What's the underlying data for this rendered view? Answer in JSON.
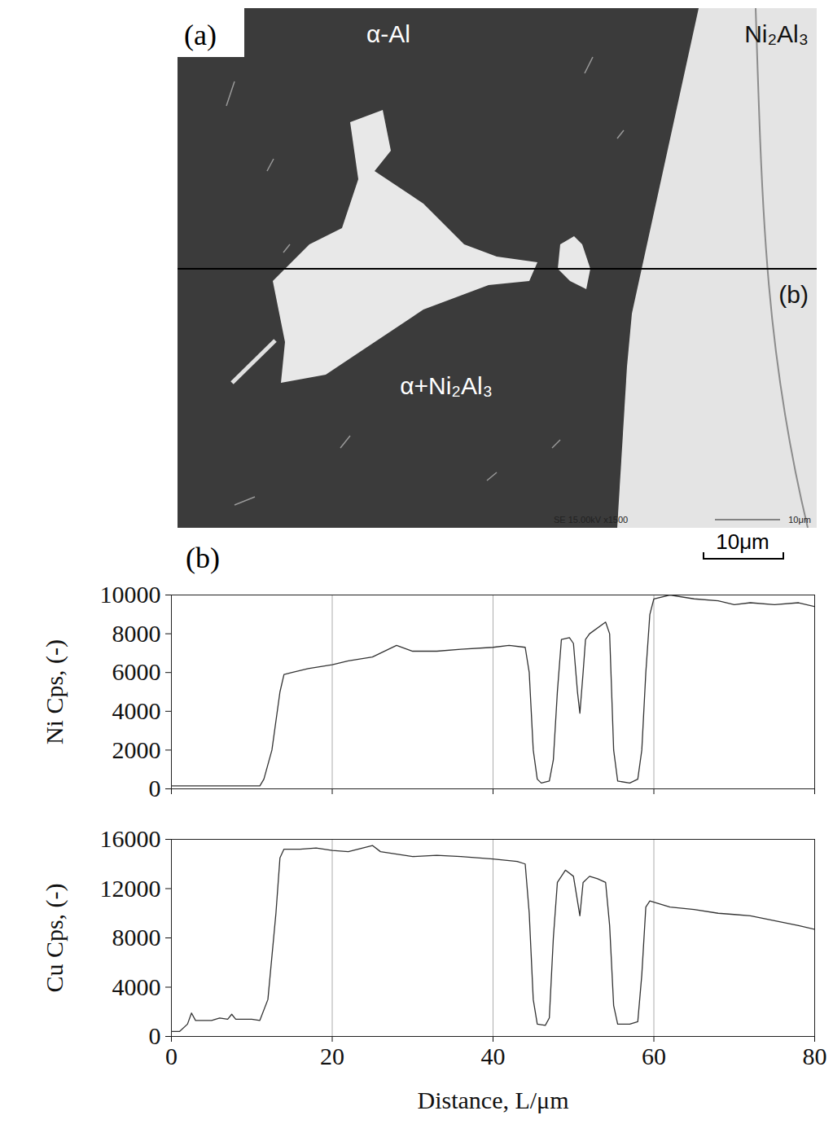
{
  "micrograph": {
    "panel_label": "(a)",
    "phase_labels": [
      "α-Al",
      "Ni₂Al₃",
      "α+Ni₂Al₃"
    ],
    "line_label": "(b)",
    "instrument_text": "SE 15.00kV x1500",
    "instrument_scale": "10μm",
    "scale_bar": "10μm"
  },
  "profile_panel_label": "(b)",
  "chart_data": [
    {
      "type": "line",
      "y_label": "Ni Cps, (-)",
      "color": "#333333",
      "grid": true,
      "tick_labels": "y",
      "xlim": [
        0,
        80
      ],
      "xticks": [
        0,
        20,
        40,
        60,
        80
      ],
      "ylim": [
        0,
        10000
      ],
      "yticks": [
        0,
        2000,
        4000,
        6000,
        8000,
        10000
      ],
      "x": [
        0,
        5,
        11,
        11.5,
        12.5,
        13.5,
        14,
        15,
        17,
        20,
        22,
        25,
        28,
        30,
        33,
        36,
        40,
        42,
        44,
        44.5,
        45,
        45.5,
        46,
        47,
        47.5,
        48,
        48.5,
        49.5,
        50,
        50.5,
        50.8,
        51.2,
        51.5,
        52,
        54,
        54.5,
        55,
        55.5,
        57,
        58,
        58.5,
        59,
        59.5,
        60,
        62,
        65,
        68,
        70,
        72,
        75,
        78,
        80
      ],
      "values": [
        150,
        150,
        150,
        500,
        2000,
        5000,
        5900,
        6000,
        6200,
        6400,
        6600,
        6800,
        7400,
        7100,
        7100,
        7200,
        7300,
        7400,
        7300,
        6000,
        2000,
        500,
        300,
        400,
        1500,
        5000,
        7700,
        7800,
        7500,
        5000,
        3900,
        6000,
        7700,
        8000,
        8600,
        8000,
        2000,
        400,
        300,
        500,
        2000,
        6000,
        9000,
        9800,
        10000,
        9800,
        9700,
        9500,
        9600,
        9500,
        9600,
        9400
      ]
    },
    {
      "type": "line",
      "y_label": "Cu Cps, (-)",
      "x_label": "Distance, L/μm",
      "color": "#333333",
      "grid": true,
      "xlim": [
        0,
        80
      ],
      "xticks": [
        0,
        20,
        40,
        60,
        80
      ],
      "ylim": [
        0,
        16000
      ],
      "yticks": [
        0,
        4000,
        8000,
        12000,
        16000
      ],
      "x": [
        0,
        1,
        2,
        2.5,
        3,
        5,
        6,
        7,
        7.5,
        8,
        10,
        11,
        12,
        13,
        13.5,
        14,
        16,
        18,
        20,
        22,
        25,
        26,
        28,
        30,
        33,
        36,
        40,
        43,
        44,
        44.5,
        45,
        45.5,
        46.5,
        47,
        47.5,
        48,
        48.5,
        49,
        50,
        50.5,
        50.8,
        51.2,
        52,
        53,
        54,
        54.5,
        55,
        55.5,
        57,
        58,
        58.5,
        59,
        59.5,
        62,
        65,
        68,
        70,
        72,
        75,
        78,
        80
      ],
      "values": [
        400,
        400,
        1000,
        1900,
        1300,
        1300,
        1500,
        1400,
        1800,
        1400,
        1400,
        1300,
        3000,
        10000,
        14500,
        15200,
        15200,
        15300,
        15100,
        15000,
        15500,
        15000,
        14800,
        14600,
        14700,
        14600,
        14400,
        14200,
        14000,
        10000,
        3000,
        1000,
        900,
        1500,
        8000,
        12500,
        13000,
        13500,
        13000,
        11000,
        9800,
        12500,
        13000,
        12800,
        12500,
        9000,
        2500,
        1000,
        1000,
        1200,
        5000,
        10500,
        11000,
        10500,
        10300,
        10000,
        9900,
        9800,
        9400,
        9000,
        8700
      ]
    }
  ]
}
